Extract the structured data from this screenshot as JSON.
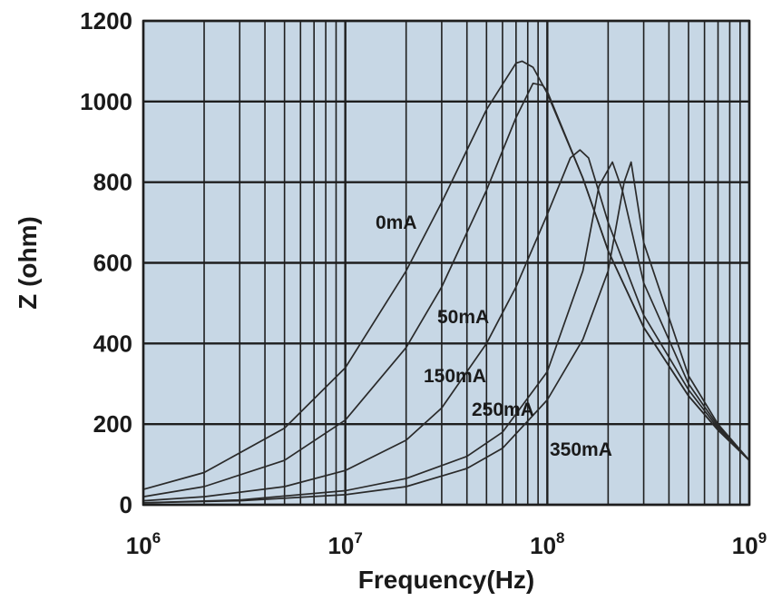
{
  "chart_data": {
    "type": "line",
    "xlabel": "Frequency(Hz)",
    "ylabel": "Z (ohm)",
    "x_scale": "log",
    "xlim": [
      1000000,
      1000000000
    ],
    "ylim": [
      0,
      1200
    ],
    "x_ticks": [
      {
        "base": "10",
        "exp": "6",
        "value": 1000000
      },
      {
        "base": "10",
        "exp": "7",
        "value": 10000000
      },
      {
        "base": "10",
        "exp": "8",
        "value": 100000000
      },
      {
        "base": "10",
        "exp": "9",
        "value": 1000000000
      }
    ],
    "y_ticks": [
      "0",
      "200",
      "400",
      "600",
      "800",
      "1000",
      "1200"
    ],
    "grid": true,
    "colors": {
      "plot_background": "#c7d7e5",
      "grid": "#1e1e1e",
      "curve": "#2a2a2a",
      "text": "#1a1a1a"
    },
    "series": [
      {
        "name": "0mA",
        "points": [
          [
            1000000,
            38
          ],
          [
            2000000,
            80
          ],
          [
            5000000,
            190
          ],
          [
            10000000,
            340
          ],
          [
            20000000,
            580
          ],
          [
            30000000,
            750
          ],
          [
            50000000,
            980
          ],
          [
            70000000,
            1095
          ],
          [
            75000000,
            1100
          ],
          [
            85000000,
            1085
          ],
          [
            100000000,
            1020
          ],
          [
            150000000,
            810
          ],
          [
            200000000,
            630
          ],
          [
            300000000,
            440
          ],
          [
            500000000,
            270
          ],
          [
            700000000,
            185
          ],
          [
            1000000000,
            110
          ]
        ]
      },
      {
        "name": "50mA",
        "points": [
          [
            1000000,
            20
          ],
          [
            2000000,
            45
          ],
          [
            5000000,
            110
          ],
          [
            10000000,
            210
          ],
          [
            20000000,
            390
          ],
          [
            30000000,
            540
          ],
          [
            50000000,
            780
          ],
          [
            70000000,
            960
          ],
          [
            85000000,
            1045
          ],
          [
            95000000,
            1040
          ],
          [
            100000000,
            1025
          ],
          [
            150000000,
            810
          ],
          [
            200000000,
            630
          ],
          [
            300000000,
            440
          ],
          [
            500000000,
            270
          ],
          [
            700000000,
            185
          ],
          [
            1000000000,
            110
          ]
        ]
      },
      {
        "name": "150mA",
        "points": [
          [
            1000000,
            10
          ],
          [
            2000000,
            20
          ],
          [
            5000000,
            45
          ],
          [
            10000000,
            85
          ],
          [
            20000000,
            160
          ],
          [
            30000000,
            240
          ],
          [
            50000000,
            400
          ],
          [
            70000000,
            540
          ],
          [
            100000000,
            720
          ],
          [
            130000000,
            860
          ],
          [
            145000000,
            880
          ],
          [
            160000000,
            860
          ],
          [
            200000000,
            700
          ],
          [
            300000000,
            470
          ],
          [
            500000000,
            285
          ],
          [
            700000000,
            190
          ],
          [
            1000000000,
            110
          ]
        ]
      },
      {
        "name": "250mA",
        "points": [
          [
            1000000,
            5
          ],
          [
            3000000,
            12
          ],
          [
            10000000,
            35
          ],
          [
            20000000,
            65
          ],
          [
            40000000,
            120
          ],
          [
            60000000,
            180
          ],
          [
            100000000,
            330
          ],
          [
            150000000,
            580
          ],
          [
            180000000,
            790
          ],
          [
            210000000,
            850
          ],
          [
            235000000,
            780
          ],
          [
            300000000,
            550
          ],
          [
            500000000,
            300
          ],
          [
            700000000,
            195
          ],
          [
            1000000000,
            110
          ]
        ]
      },
      {
        "name": "350mA",
        "points": [
          [
            1000000,
            5
          ],
          [
            3000000,
            10
          ],
          [
            10000000,
            25
          ],
          [
            20000000,
            45
          ],
          [
            40000000,
            90
          ],
          [
            60000000,
            140
          ],
          [
            100000000,
            260
          ],
          [
            150000000,
            410
          ],
          [
            200000000,
            580
          ],
          [
            240000000,
            800
          ],
          [
            260000000,
            850
          ],
          [
            300000000,
            650
          ],
          [
            500000000,
            320
          ],
          [
            700000000,
            200
          ],
          [
            1000000000,
            110
          ]
        ]
      }
    ],
    "annotations": [
      "0mA",
      "50mA",
      "150mA",
      "250mA",
      "350mA"
    ]
  }
}
